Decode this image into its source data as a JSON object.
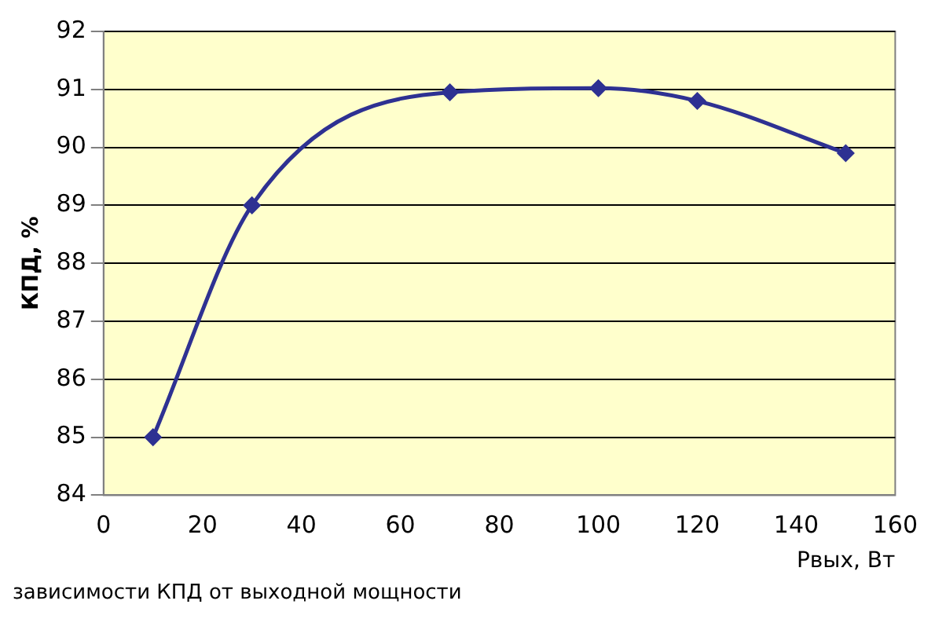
{
  "chart_data": {
    "type": "line",
    "xlabel": "Pвых, Вт",
    "ylabel": "КПД, %",
    "x": [
      10,
      30,
      70,
      100,
      120,
      150
    ],
    "series": [
      {
        "color": "#2e3192",
        "values": [
          85,
          89,
          90.95,
          91.02,
          90.8,
          89.9
        ]
      }
    ],
    "xlim": [
      0,
      160
    ],
    "xticks": [
      0,
      20,
      40,
      60,
      80,
      100,
      120,
      140,
      160
    ],
    "ylim": [
      84,
      92
    ],
    "yticks": [
      84,
      85,
      86,
      87,
      88,
      89,
      90,
      91,
      92
    ],
    "grid": "y",
    "marker": "diamond",
    "line_style": "solid",
    "legend": false,
    "annotations": [
      "зависимости КПД от выходной мощности"
    ]
  }
}
